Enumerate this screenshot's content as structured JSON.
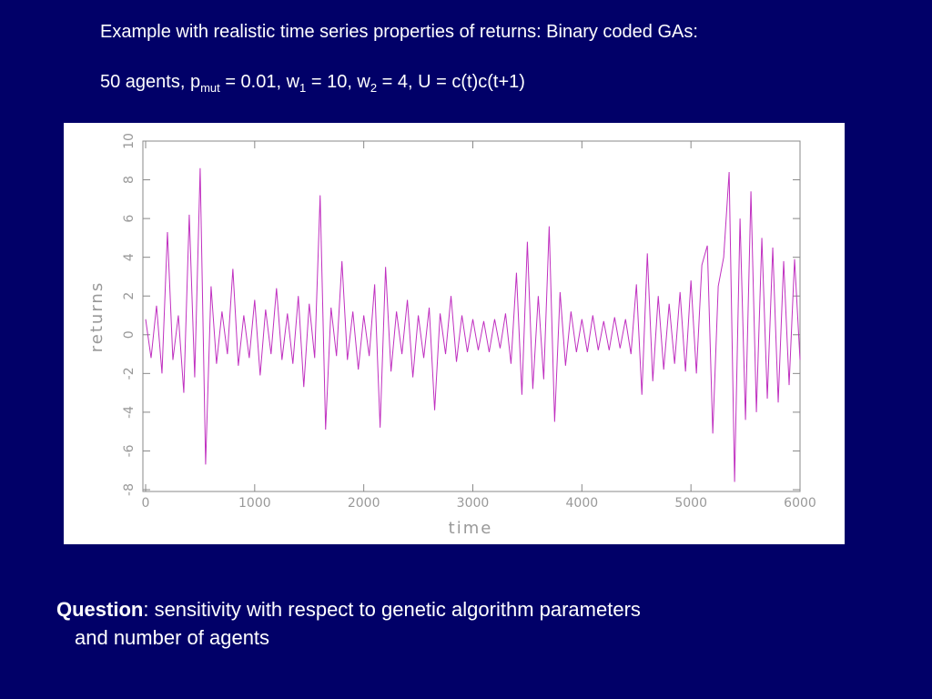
{
  "header": {
    "line1": "Example with realistic time series properties of returns: Binary coded GAs:",
    "line2": [
      "50 agents, p",
      "mut",
      " = 0.01, w",
      "1",
      " = 10, w",
      "2",
      " = 4, U = c(t)c(t+1)"
    ]
  },
  "chart_data": {
    "type": "line",
    "x_label": "time",
    "y_label": "returns",
    "x": [
      0,
      50,
      100,
      150,
      200,
      250,
      300,
      350,
      400,
      450,
      500,
      550,
      600,
      650,
      700,
      750,
      800,
      850,
      900,
      950,
      1000,
      1050,
      1100,
      1150,
      1200,
      1250,
      1300,
      1350,
      1400,
      1450,
      1500,
      1550,
      1600,
      1650,
      1700,
      1750,
      1800,
      1850,
      1900,
      1950,
      2000,
      2050,
      2100,
      2150,
      2200,
      2250,
      2300,
      2350,
      2400,
      2450,
      2500,
      2550,
      2600,
      2650,
      2700,
      2750,
      2800,
      2850,
      2900,
      2950,
      3000,
      3050,
      3100,
      3150,
      3200,
      3250,
      3300,
      3350,
      3400,
      3450,
      3500,
      3550,
      3600,
      3650,
      3700,
      3750,
      3800,
      3850,
      3900,
      3950,
      4000,
      4050,
      4100,
      4150,
      4200,
      4250,
      4300,
      4350,
      4400,
      4450,
      4500,
      4550,
      4600,
      4650,
      4700,
      4750,
      4800,
      4850,
      4900,
      4950,
      5000,
      5050,
      5100,
      5150,
      5200,
      5250,
      5300,
      5350,
      5400,
      5450,
      5500,
      5550,
      5600,
      5650,
      5700,
      5750,
      5800,
      5850,
      5900,
      5950,
      6000
    ],
    "values": [
      0.8,
      -1.2,
      1.5,
      -2.0,
      5.3,
      -1.3,
      1.0,
      -3.0,
      6.2,
      -2.2,
      8.6,
      -6.7,
      2.5,
      -1.5,
      1.2,
      -1.0,
      3.4,
      -1.6,
      1.0,
      -1.2,
      1.8,
      -2.1,
      1.3,
      -1.0,
      2.4,
      -1.3,
      1.1,
      -1.5,
      2.0,
      -2.7,
      1.6,
      -1.2,
      7.2,
      -4.9,
      1.4,
      -1.1,
      3.8,
      -1.3,
      1.2,
      -1.8,
      1.0,
      -1.1,
      2.6,
      -4.8,
      3.5,
      -1.9,
      1.2,
      -1.0,
      1.8,
      -2.2,
      1.0,
      -1.2,
      1.4,
      -3.9,
      1.1,
      -1.0,
      2.0,
      -1.4,
      1.0,
      -0.9,
      0.8,
      -0.8,
      0.7,
      -0.9,
      0.8,
      -0.7,
      1.1,
      -1.5,
      3.2,
      -3.1,
      4.8,
      -2.8,
      2.0,
      -2.3,
      5.6,
      -4.5,
      2.2,
      -1.6,
      1.2,
      -0.9,
      0.8,
      -0.9,
      1.0,
      -0.8,
      0.7,
      -0.8,
      0.9,
      -0.7,
      0.8,
      -1.0,
      2.6,
      -3.1,
      4.2,
      -2.4,
      2.0,
      -1.8,
      1.6,
      -1.5,
      2.2,
      -1.9,
      2.8,
      -2.0,
      3.6,
      4.6,
      -5.1,
      2.5,
      4.0,
      8.4,
      -7.6,
      6.0,
      -4.4,
      7.4,
      -4.0,
      5.0,
      -3.3,
      4.5,
      -3.5,
      3.8,
      -2.6,
      3.9,
      -1.3
    ],
    "color": "#c030c0",
    "xlim": [
      0,
      6000
    ],
    "ylim": [
      -8,
      10
    ],
    "xticks": [
      0,
      1000,
      2000,
      3000,
      4000,
      5000,
      6000
    ],
    "yticks": [
      -8,
      -6,
      -4,
      -2,
      0,
      2,
      4,
      6,
      8,
      10
    ]
  },
  "footer": {
    "label": "Question",
    "line1": ": sensitivity with respect to genetic algorithm parameters",
    "line2": "and number of agents"
  }
}
